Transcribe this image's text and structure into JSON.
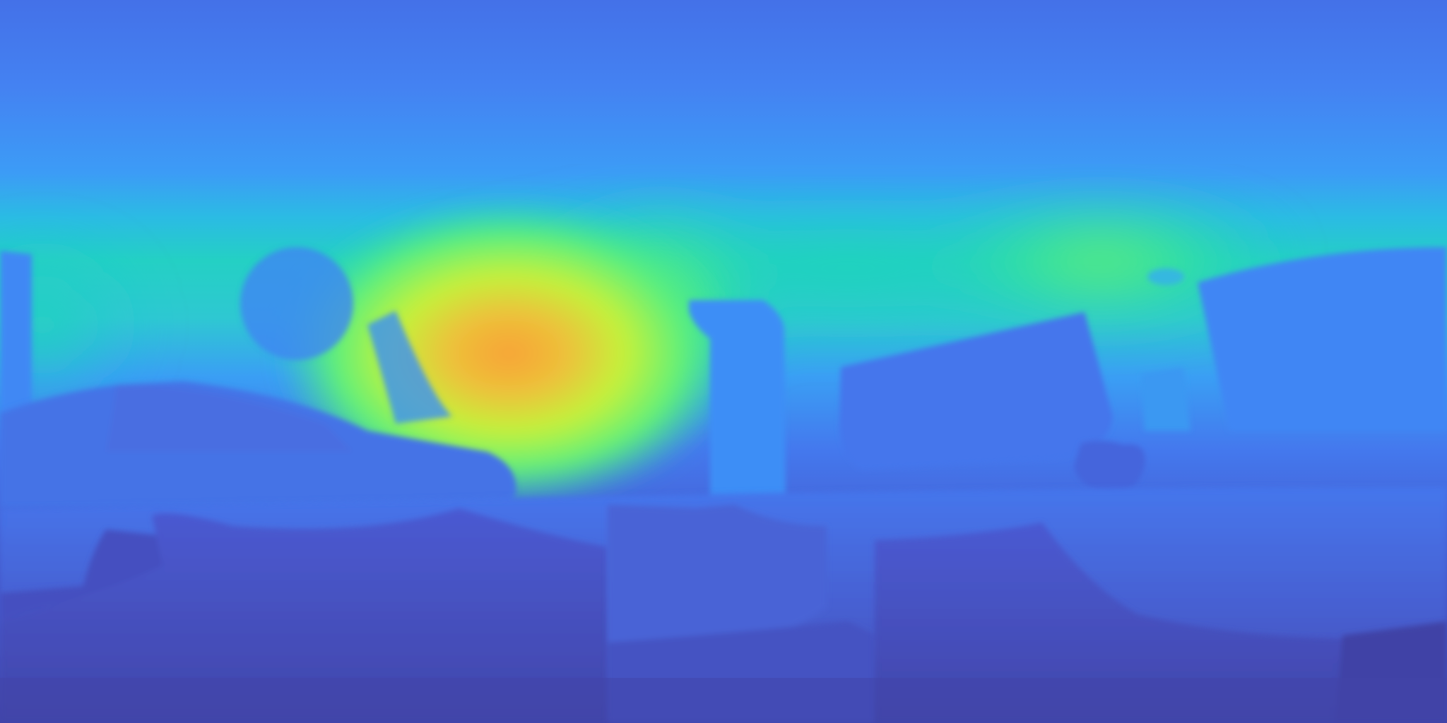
{
  "image": {
    "kind": "equirectangular depth map",
    "colormap": "turbo",
    "palette": {
      "near": "#3f3c9e",
      "near_mid": "#4550c4",
      "mid": "#4479ee",
      "mid_far": "#3aa2f6",
      "far_cyan": "#22c8d8",
      "far_green": "#28e69a",
      "far_yellow": "#c4f23a",
      "farthest": "#f8a438"
    }
  }
}
